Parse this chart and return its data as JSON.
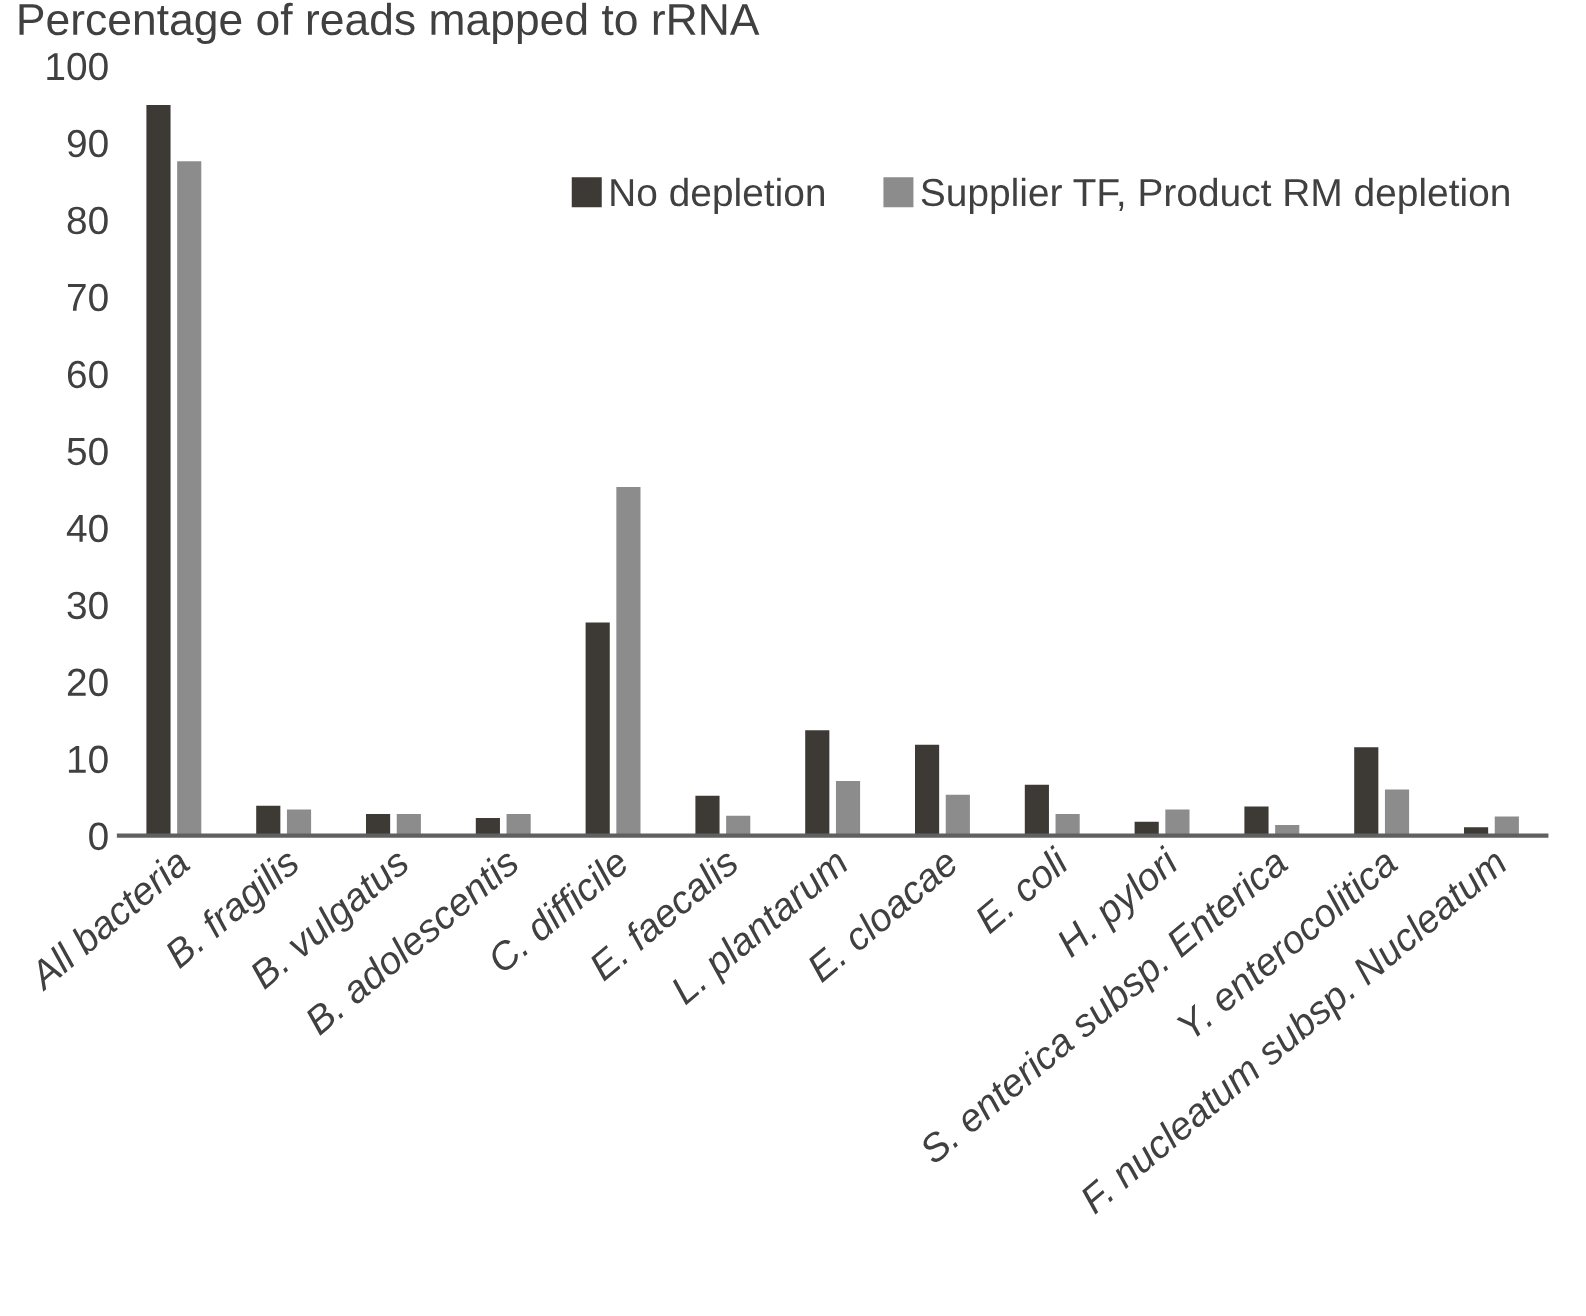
{
  "chart_data": {
    "type": "bar",
    "title": "Percentage of reads mapped to rRNA",
    "categories": [
      "All bacteria",
      "B. fragilis",
      "B. vulgatus",
      "B. adolescentis",
      "C. difficile",
      "E. faecalis",
      "L. plantarum",
      "E. cloacae",
      "E. coli",
      "H. pylori",
      "S. enterica subsp. Enterica",
      "Y. enterocolitica",
      "F. nucleatum subsp. Nucleatum"
    ],
    "series": [
      {
        "name": "No depletion",
        "color": "#3d3a35",
        "values": [
          94.9,
          3.9,
          2.8,
          2.3,
          27.7,
          5.2,
          13.7,
          11.8,
          6.6,
          1.8,
          3.8,
          11.5,
          1.1
        ]
      },
      {
        "name": "Supplier TF, Product RM depletion",
        "color": "#8c8c8c",
        "values": [
          87.6,
          3.4,
          2.8,
          2.8,
          45.3,
          2.6,
          7.1,
          5.3,
          2.8,
          3.4,
          1.4,
          6.0,
          2.5
        ]
      }
    ],
    "ylim": [
      0,
      100
    ],
    "yticks": [
      0,
      10,
      20,
      30,
      40,
      50,
      60,
      70,
      80,
      90,
      100
    ],
    "grid": false,
    "legend": "top right"
  }
}
